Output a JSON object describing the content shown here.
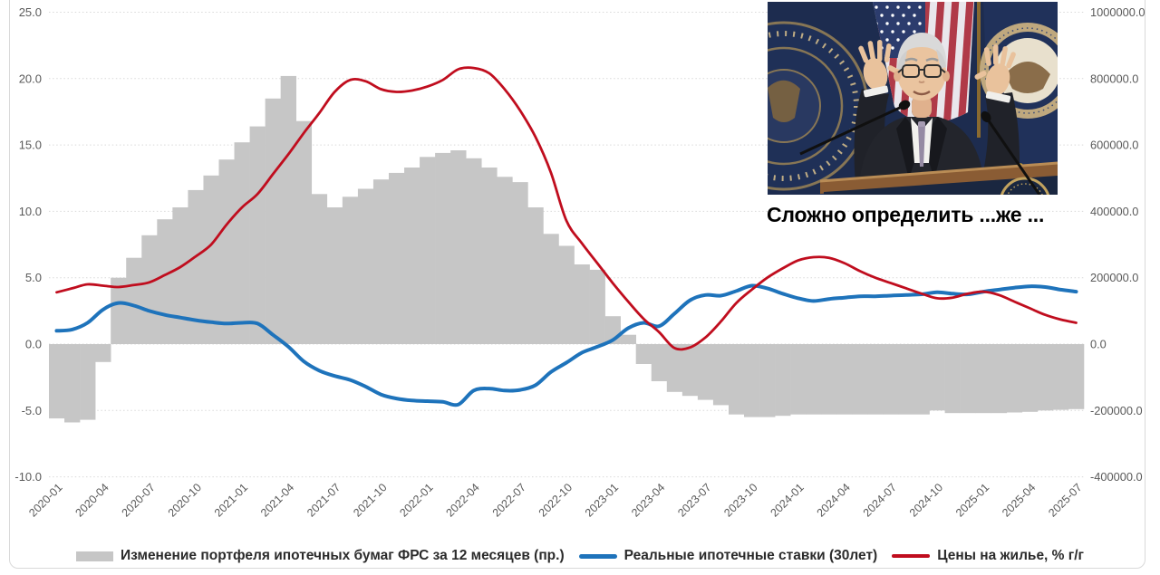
{
  "caption": {
    "text": "Сложно определить ...же ..."
  },
  "photo": {
    "description": "Fed chair speaking at podium with US and Federal Reserve flags"
  },
  "chart_data": {
    "type": "combo",
    "grid": "dotted-horizontal",
    "legend_position": "bottom",
    "axes": {
      "left": {
        "ticks": [
          "25.0",
          "20.0",
          "15.0",
          "10.0",
          "5.0",
          "0.0",
          "-5.0",
          "-10.0"
        ],
        "min": -10,
        "max": 25
      },
      "right": {
        "ticks": [
          "1000000.0",
          "800000.0",
          "600000.0",
          "400000.0",
          "200000.0",
          "0.0",
          "-200000.0",
          "-400000.0"
        ],
        "min": -400000,
        "max": 1000000
      }
    },
    "x_categories": [
      "2020-01",
      "2020-02",
      "2020-03",
      "2020-04",
      "2020-05",
      "2020-06",
      "2020-07",
      "2020-08",
      "2020-09",
      "2020-10",
      "2020-11",
      "2020-12",
      "2021-01",
      "2021-02",
      "2021-03",
      "2021-04",
      "2021-05",
      "2021-06",
      "2021-07",
      "2021-08",
      "2021-09",
      "2021-10",
      "2021-11",
      "2021-12",
      "2022-01",
      "2022-02",
      "2022-03",
      "2022-04",
      "2022-05",
      "2022-06",
      "2022-07",
      "2022-08",
      "2022-09",
      "2022-10",
      "2022-11",
      "2022-12",
      "2023-01",
      "2023-02",
      "2023-03",
      "2023-04",
      "2023-05",
      "2023-06",
      "2023-07",
      "2023-08",
      "2023-09",
      "2023-10",
      "2023-11",
      "2023-12",
      "2024-01",
      "2024-02",
      "2024-03",
      "2024-04",
      "2024-05",
      "2024-06",
      "2024-07",
      "2024-08",
      "2024-09",
      "2024-10",
      "2024-11",
      "2024-12",
      "2025-01",
      "2025-02",
      "2025-03",
      "2025-04",
      "2025-05",
      "2025-06",
      "2025-07"
    ],
    "x_label_every": 3,
    "series": [
      {
        "name": "Изменение портфеля ипотечных бумаг ФРС за 12 месяцев (пр.)",
        "type": "bar",
        "axis": "right",
        "color": "#c6c6c6",
        "values": [
          -224000,
          -236000,
          -228000,
          -54000,
          200000,
          260000,
          328000,
          376000,
          412000,
          464000,
          508000,
          556000,
          608000,
          656000,
          740000,
          808000,
          672000,
          452000,
          412000,
          444000,
          468000,
          496000,
          516000,
          532000,
          564000,
          576000,
          584000,
          560000,
          532000,
          504000,
          488000,
          412000,
          332000,
          296000,
          240000,
          224000,
          84000,
          28000,
          -60000,
          -112000,
          -144000,
          -156000,
          -168000,
          -184000,
          -212000,
          -220000,
          -220000,
          -216000,
          -212000,
          -212000,
          -212000,
          -212000,
          -212000,
          -212000,
          -212000,
          -212000,
          -212000,
          -200000,
          -208000,
          -208000,
          -208000,
          -208000,
          -206000,
          -204000,
          -200000,
          -198000,
          -196000
        ]
      },
      {
        "name": "Реальные ипотечные ставки (30лет)",
        "type": "line",
        "axis": "left",
        "color": "#1e73bb",
        "stroke_width": 4,
        "values": [
          1.0,
          1.1,
          1.6,
          2.6,
          3.1,
          2.9,
          2.5,
          2.2,
          2.0,
          1.8,
          1.65,
          1.55,
          1.6,
          1.55,
          0.7,
          -0.2,
          -1.3,
          -2.0,
          -2.4,
          -2.7,
          -3.2,
          -3.8,
          -4.1,
          -4.25,
          -4.3,
          -4.35,
          -4.55,
          -3.5,
          -3.35,
          -3.5,
          -3.45,
          -3.1,
          -2.1,
          -1.4,
          -0.65,
          -0.2,
          0.3,
          1.2,
          1.6,
          1.35,
          2.3,
          3.3,
          3.7,
          3.65,
          4.0,
          4.4,
          4.2,
          3.8,
          3.45,
          3.25,
          3.4,
          3.5,
          3.6,
          3.6,
          3.65,
          3.7,
          3.75,
          3.9,
          3.8,
          3.75,
          3.95,
          4.1,
          4.25,
          4.35,
          4.3,
          4.1,
          3.95
        ]
      },
      {
        "name": "Цены на жилье, % г/г",
        "type": "line",
        "axis": "left",
        "color": "#c00d1e",
        "stroke_width": 2.8,
        "values": [
          3.9,
          4.2,
          4.5,
          4.4,
          4.3,
          4.45,
          4.65,
          5.2,
          5.8,
          6.6,
          7.5,
          9.0,
          10.3,
          11.3,
          12.8,
          14.3,
          15.9,
          17.4,
          19.0,
          19.9,
          19.8,
          19.2,
          19.0,
          19.1,
          19.4,
          19.9,
          20.7,
          20.8,
          20.4,
          19.2,
          17.6,
          15.6,
          12.9,
          9.3,
          7.6,
          6.1,
          4.6,
          3.2,
          1.9,
          0.9,
          -0.3,
          -0.25,
          0.5,
          1.7,
          3.1,
          4.1,
          5.0,
          5.7,
          6.3,
          6.55,
          6.5,
          6.1,
          5.5,
          5.0,
          4.6,
          4.2,
          3.8,
          3.45,
          3.5,
          3.8,
          3.95,
          3.7,
          3.2,
          2.7,
          2.2,
          1.85,
          1.6
        ]
      }
    ],
    "style": {
      "gridline_color": "#d9d9d9",
      "tick_color": "#595959",
      "bar_color": "#c6c6c6",
      "blue": "#1e73bb",
      "red": "#c00d1e"
    }
  }
}
